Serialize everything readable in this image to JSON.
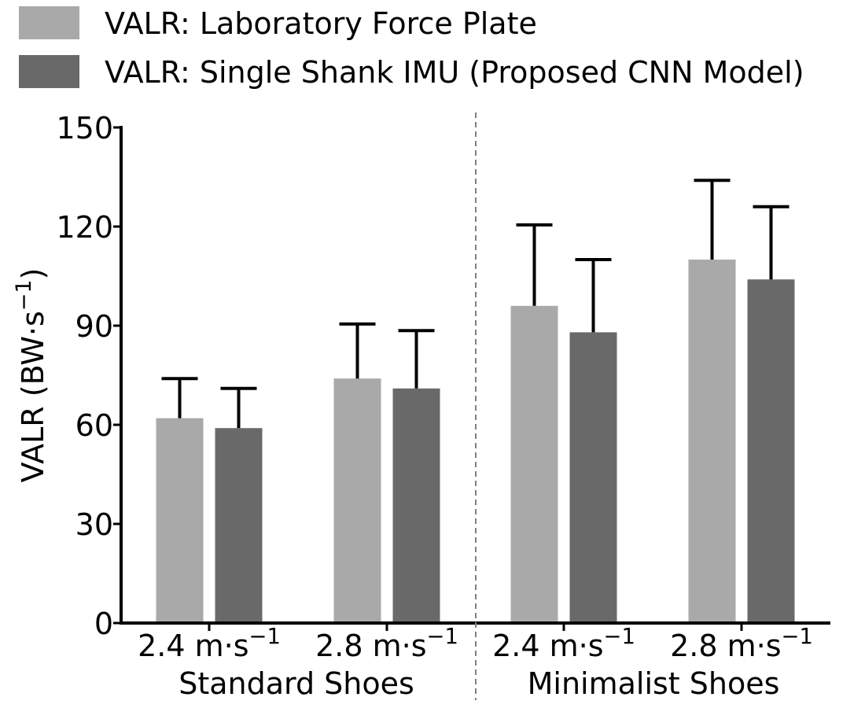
{
  "chart_data": {
    "type": "bar",
    "ylabel": "VALR (BW·s",
    "ylabel_sup": "−1",
    "ylabel_close": ")",
    "ylim": [
      0,
      150
    ],
    "yticks": [
      "0",
      "30",
      "60",
      "90",
      "120",
      "150"
    ],
    "ytick_values": [
      0,
      30,
      60,
      90,
      120,
      150
    ],
    "categories": [
      {
        "label": "2.4 m·s",
        "sup": "−1"
      },
      {
        "label": "2.8 m·s",
        "sup": "−1"
      },
      {
        "label": "2.4 m·s",
        "sup": "−1"
      },
      {
        "label": "2.8 m·s",
        "sup": "−1"
      }
    ],
    "groups": [
      "Standard Shoes",
      "Minimalist Shoes"
    ],
    "series": [
      {
        "name": "VALR: Laboratory Force Plate",
        "color": "#a9a9a9",
        "values": [
          62,
          74,
          96,
          110
        ],
        "errors": [
          12,
          16.5,
          24.5,
          24
        ]
      },
      {
        "name": "VALR: Single Shank IMU (Proposed CNN Model)",
        "color": "#696969",
        "values": [
          59,
          71,
          88,
          104
        ],
        "errors": [
          12,
          17.5,
          22,
          22
        ]
      }
    ],
    "separator": "dashed vertical line between Standard Shoes and Minimalist Shoes",
    "grid": false,
    "legend": "top-left"
  }
}
